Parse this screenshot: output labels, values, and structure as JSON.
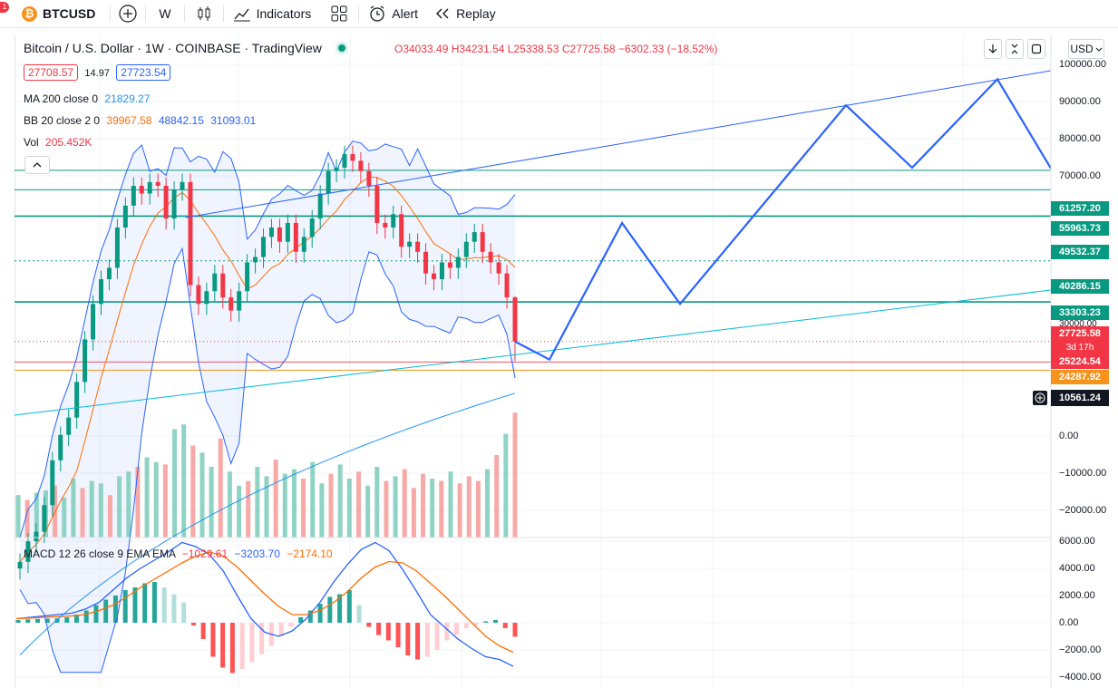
{
  "toolbar": {
    "notification_count": "1",
    "symbol": "BTCUSD",
    "interval": "W",
    "indicators_label": "Indicators",
    "alert_label": "Alert",
    "replay_label": "Replay",
    "icons": [
      "plus-icon",
      "candles-icon",
      "indicators-icon",
      "layout-icon",
      "alert-icon",
      "replay-icon"
    ]
  },
  "header": {
    "title": "Bitcoin / U.S. Dollar · 1W · COINBASE · TradingView",
    "open": "O34033.49",
    "high": "H34231.54",
    "low": "L25338.53",
    "close": "C27725.58",
    "change": "−6302.33 (−18.52%)",
    "bid": "27708.57",
    "spread": "14.97",
    "ask": "27723.54",
    "currency": "USD"
  },
  "indicators": {
    "ma": {
      "label": "MA 200 close 0",
      "value": "21829.27"
    },
    "bb": {
      "label": "BB 20 close 2 0",
      "basis": "39967.58",
      "upper": "48842.15",
      "lower": "31093.01"
    },
    "vol": {
      "label": "Vol",
      "value": "205.452K"
    },
    "macd": {
      "label": "MACD 12 26 close 9 EMA EMA",
      "hist": "−1029.61",
      "macd": "−3203.70",
      "signal": "−2174.10"
    }
  },
  "price_axis": {
    "labels": [
      "100000.00",
      "90000.00",
      "80000.00",
      "70000.00",
      "30000.00"
    ],
    "tags": [
      {
        "value": "61257.20",
        "color": "#089981"
      },
      {
        "value": "55963.73",
        "color": "#089981"
      },
      {
        "value": "49532.37",
        "color": "#089981"
      },
      {
        "value": "40286.15",
        "color": "#089981"
      },
      {
        "value": "33303.23",
        "color": "#089981"
      },
      {
        "value": "27725.58",
        "color": "#f23645"
      },
      {
        "value": "25224.54",
        "color": "#f23645"
      },
      {
        "value": "24287.92",
        "color": "#f7931a"
      },
      {
        "value": "10561.24",
        "color": "#131722"
      }
    ],
    "countdown": "3d 17h"
  },
  "volume_axis": {
    "labels": [
      "0.00",
      "−10000.00",
      "−20000.00"
    ]
  },
  "macd_axis": {
    "labels": [
      "6000.00",
      "4000.00",
      "2000.00",
      "0.00",
      "−2000.00",
      "−4000.00"
    ]
  },
  "chart_data": {
    "type": "candlestick",
    "symbol": "BTCUSD",
    "interval": "1W",
    "ohlc_last": {
      "open": 34033.49,
      "high": 34231.54,
      "low": 25338.53,
      "close": 27725.58
    },
    "horizontal_levels": [
      61257.2,
      55963.73,
      49532.37,
      40286.15,
      33303.23,
      24287.92
    ],
    "projection_path": [
      [
        27725.58,
        0
      ],
      [
        25500,
        1
      ],
      [
        48000,
        2
      ],
      [
        33000,
        3
      ],
      [
        89000,
        4
      ],
      [
        62000,
        5
      ],
      [
        96000,
        6
      ],
      [
        72000,
        7
      ]
    ],
    "close_series": [
      10000,
      11000,
      11500,
      13000,
      16000,
      18000,
      19500,
      23000,
      28000,
      33000,
      37000,
      39000,
      47000,
      52000,
      57000,
      55000,
      58000,
      57000,
      49000,
      56000,
      58000,
      36000,
      33000,
      35000,
      38000,
      34000,
      32000,
      35000,
      40000,
      41000,
      45000,
      47000,
      44000,
      48000,
      42000,
      45000,
      49000,
      55000,
      61000,
      62000,
      66000,
      64000,
      61000,
      57000,
      48000,
      47000,
      50000,
      43000,
      44000,
      42000,
      38000,
      37000,
      40000,
      39000,
      41000,
      44000,
      46000,
      42000,
      40000,
      38000,
      34000,
      27725.58
    ],
    "macd_hist": [
      200,
      250,
      280,
      300,
      320,
      400,
      600,
      900,
      1300,
      1700,
      2000,
      2400,
      2600,
      2900,
      3000,
      2600,
      2100,
      1500,
      -200,
      -1200,
      -2500,
      -3300,
      -3700,
      -3400,
      -2900,
      -2300,
      -1700,
      -1000,
      -300,
      400,
      900,
      1400,
      1900,
      2100,
      2400,
      1300,
      -300,
      -900,
      -1300,
      -1800,
      -2400,
      -2700,
      -2500,
      -2000,
      -1300,
      -900,
      -400,
      -200,
      100,
      200,
      -400,
      -1029.61
    ],
    "macd_line": [
      300,
      400,
      500,
      600,
      700,
      1000,
      1500,
      2400,
      3300,
      4000,
      4600,
      5200,
      5900,
      5600,
      5000,
      3800,
      2000,
      300,
      -700,
      -1000,
      -600,
      300,
      1500,
      3000,
      4300,
      5400,
      5900,
      5300,
      3900,
      2300,
      600,
      -300,
      -1200,
      -1900,
      -2500,
      -2700,
      -3203.7
    ],
    "signal_line": [
      300,
      350,
      400,
      450,
      500,
      600,
      900,
      1300,
      1900,
      2600,
      3200,
      3800,
      4400,
      4900,
      5200,
      4900,
      4100,
      3100,
      2100,
      1200,
      600,
      600,
      900,
      1500,
      2300,
      3300,
      4100,
      4500,
      4400,
      3800,
      2900,
      2000,
      1000,
      0,
      -1000,
      -1700,
      -2174.1
    ],
    "volume": [
      18,
      16,
      19,
      20,
      22,
      17,
      25,
      21,
      24,
      23,
      18,
      26,
      28,
      30,
      34,
      32,
      31,
      46,
      48,
      39,
      36,
      30,
      42,
      28,
      22,
      24,
      30,
      26,
      33,
      27,
      29,
      25,
      32,
      23,
      27,
      31,
      25,
      28,
      22,
      30,
      24,
      26,
      29,
      21,
      27,
      25,
      24,
      28,
      23,
      26,
      24,
      29,
      35,
      44,
      53
    ]
  }
}
